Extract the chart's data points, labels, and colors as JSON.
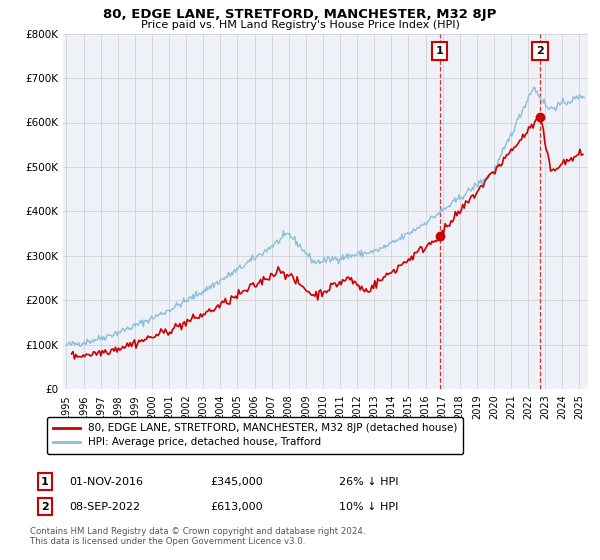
{
  "title": "80, EDGE LANE, STRETFORD, MANCHESTER, M32 8JP",
  "subtitle": "Price paid vs. HM Land Registry's House Price Index (HPI)",
  "legend_line1": "80, EDGE LANE, STRETFORD, MANCHESTER, M32 8JP (detached house)",
  "legend_line2": "HPI: Average price, detached house, Trafford",
  "footer": "Contains HM Land Registry data © Crown copyright and database right 2024.\nThis data is licensed under the Open Government Licence v3.0.",
  "sale1_label": "1",
  "sale1_date": "01-NOV-2016",
  "sale1_price": "£345,000",
  "sale1_hpi": "26% ↓ HPI",
  "sale2_label": "2",
  "sale2_date": "08-SEP-2022",
  "sale2_price": "£613,000",
  "sale2_hpi": "10% ↓ HPI",
  "sale1_x": 2016.83,
  "sale1_y": 345000,
  "sale2_x": 2022.69,
  "sale2_y": 613000,
  "hpi_color": "#8bbfdb",
  "price_color": "#cc0000",
  "sale_marker_color": "#cc0000",
  "background_color": "#eef2f8",
  "grid_color": "#cccccc",
  "ylim": [
    0,
    800000
  ],
  "xlim_start": 1994.8,
  "xlim_end": 2025.5,
  "yticks": [
    0,
    100000,
    200000,
    300000,
    400000,
    500000,
    600000,
    700000,
    800000
  ],
  "ytick_labels": [
    "£0",
    "£100K",
    "£200K",
    "£300K",
    "£400K",
    "£500K",
    "£600K",
    "£700K",
    "£800K"
  ],
  "xticks": [
    1995,
    1996,
    1997,
    1998,
    1999,
    2000,
    2001,
    2002,
    2003,
    2004,
    2005,
    2006,
    2007,
    2008,
    2009,
    2010,
    2011,
    2012,
    2013,
    2014,
    2015,
    2016,
    2017,
    2018,
    2019,
    2020,
    2021,
    2022,
    2023,
    2024,
    2025
  ]
}
